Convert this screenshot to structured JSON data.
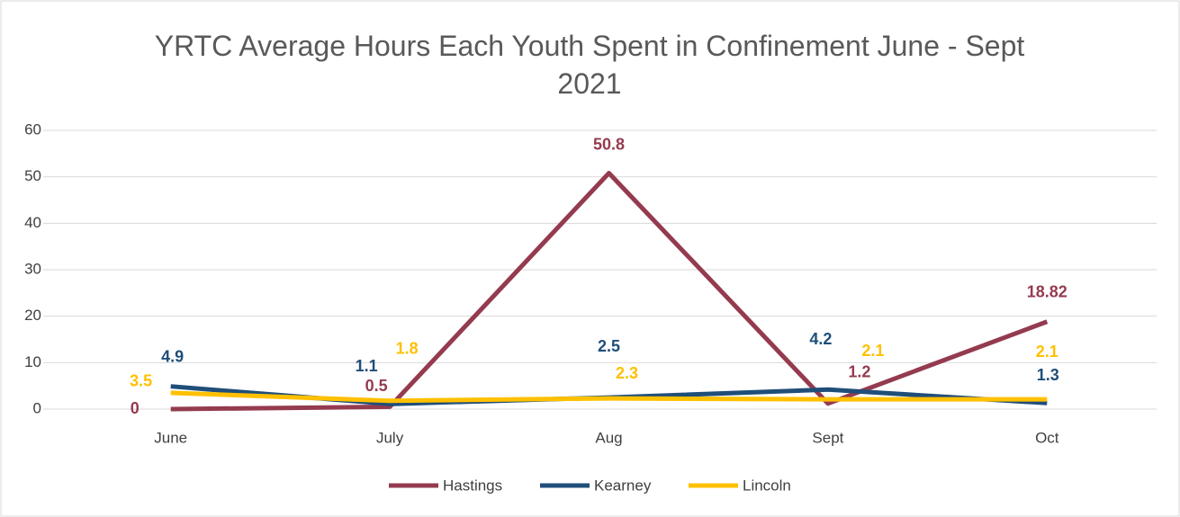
{
  "chart_data": {
    "type": "line",
    "title": "YRTC Average Hours Each Youth Spent in Confinement June - Sept 2021",
    "categories": [
      "June",
      "July",
      "Aug",
      "Sept",
      "Oct"
    ],
    "series": [
      {
        "name": "Hastings",
        "color": "#943b4f",
        "values": [
          0,
          0.5,
          50.8,
          1.2,
          18.82
        ]
      },
      {
        "name": "Kearney",
        "color": "#1f4e79",
        "values": [
          4.9,
          1.1,
          2.5,
          4.2,
          1.3
        ]
      },
      {
        "name": "Lincoln",
        "color": "#ffc000",
        "values": [
          3.5,
          1.8,
          2.3,
          2.1,
          2.1
        ]
      }
    ],
    "ylim": [
      0,
      60
    ],
    "yticks": [
      0,
      10,
      20,
      30,
      40,
      50,
      60
    ],
    "grid": true,
    "legend": "bottom"
  }
}
